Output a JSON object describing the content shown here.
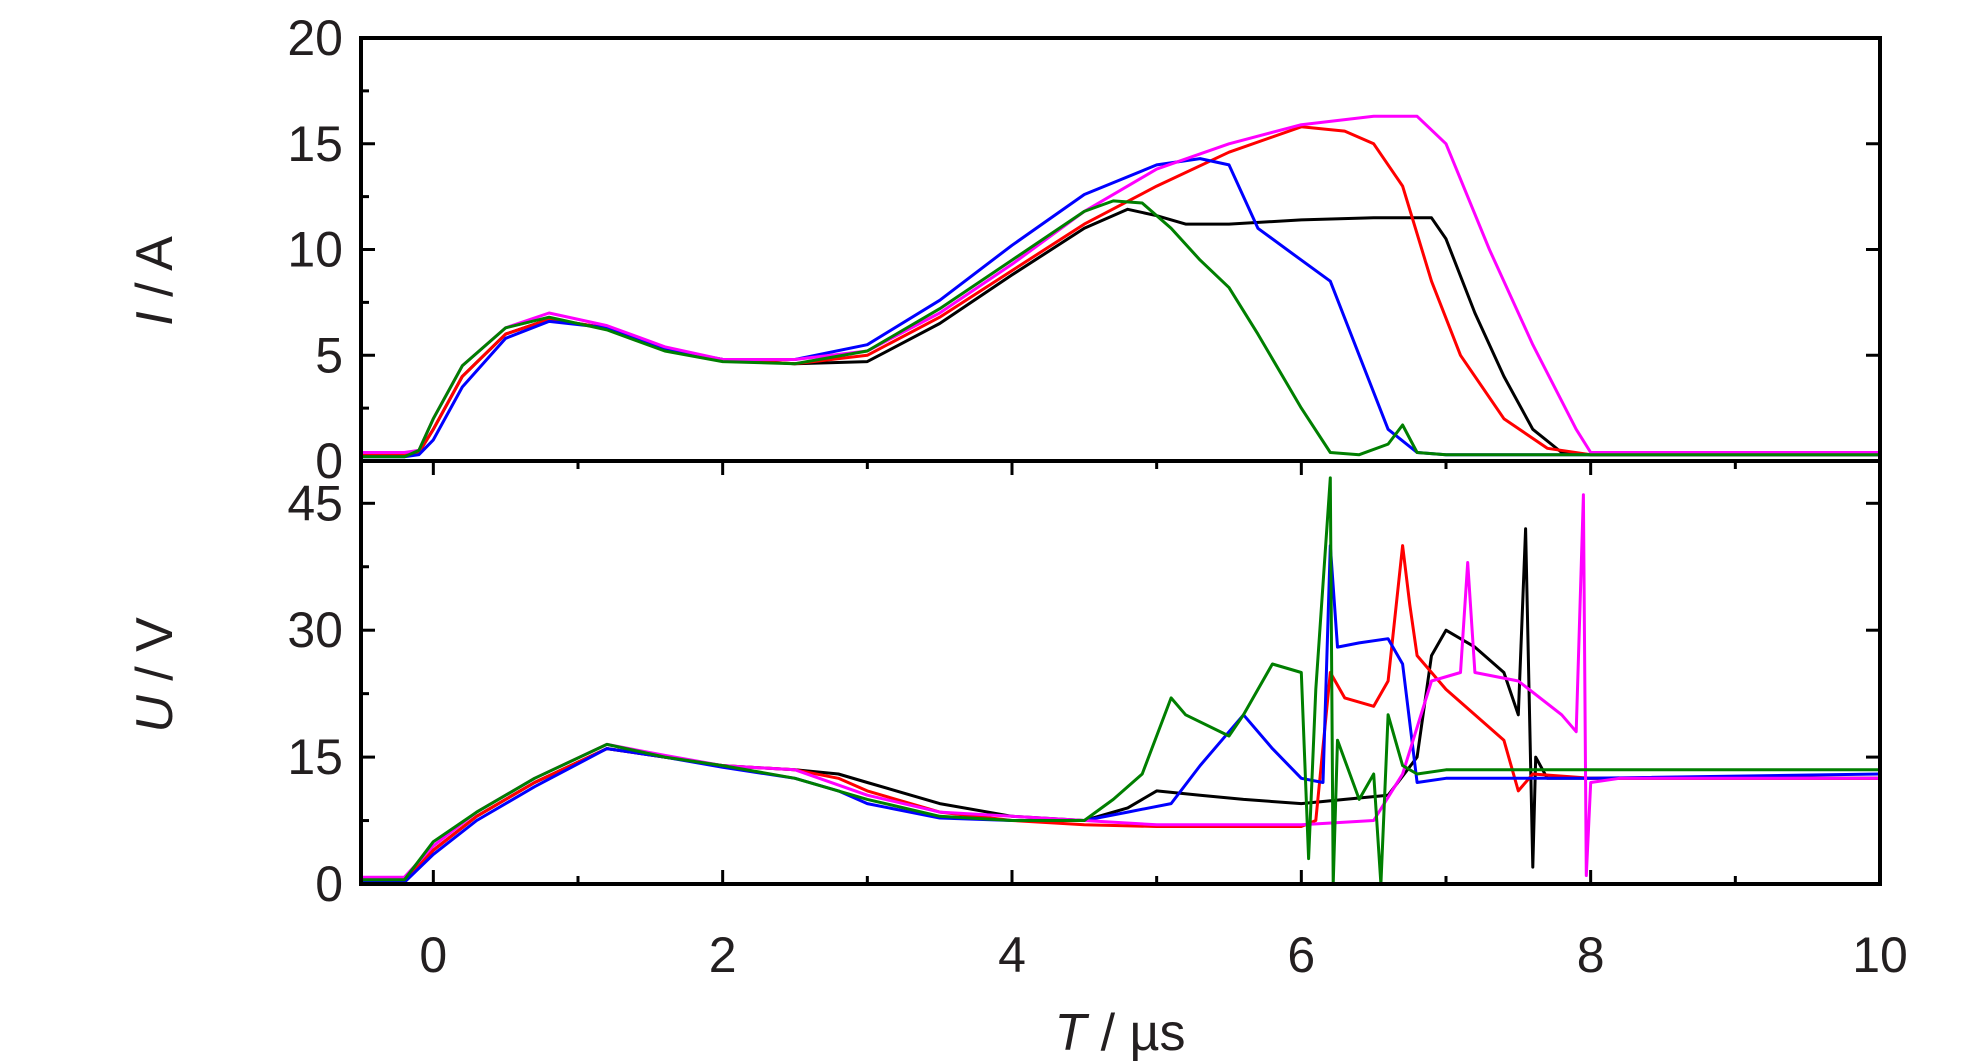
{
  "chart_data": [
    {
      "type": "line",
      "panel": "top",
      "ylabel_var": "I",
      "ylabel_unit": " / A",
      "ylim": [
        0,
        20
      ],
      "yticks": [
        "0",
        "5",
        "10",
        "15",
        "20"
      ],
      "xlim": [
        -0.5,
        10
      ],
      "grid": false,
      "series": [
        {
          "color": "#000000",
          "x": [
            -0.5,
            -0.2,
            -0.1,
            0,
            0.2,
            0.5,
            0.8,
            1.2,
            1.6,
            2.0,
            2.5,
            3.0,
            3.5,
            4.0,
            4.5,
            4.8,
            5.0,
            5.2,
            5.5,
            6.0,
            6.5,
            6.9,
            7.0,
            7.2,
            7.4,
            7.6,
            7.8,
            8.0,
            10.0
          ],
          "y": [
            0.3,
            0.3,
            0.4,
            1.5,
            4.0,
            6.0,
            6.7,
            6.3,
            5.3,
            4.8,
            4.6,
            4.7,
            6.5,
            8.8,
            11.0,
            11.9,
            11.6,
            11.2,
            11.2,
            11.4,
            11.5,
            11.5,
            10.5,
            7.0,
            4.0,
            1.5,
            0.4,
            0.3,
            0.3
          ]
        },
        {
          "color": "#ff0000",
          "x": [
            -0.5,
            -0.2,
            -0.1,
            0,
            0.2,
            0.5,
            0.8,
            1.2,
            1.6,
            2.0,
            2.5,
            3.0,
            3.5,
            4.0,
            4.5,
            5.0,
            5.5,
            6.0,
            6.3,
            6.5,
            6.7,
            6.9,
            7.1,
            7.4,
            7.7,
            8.0,
            10.0
          ],
          "y": [
            0.3,
            0.3,
            0.4,
            1.5,
            4.0,
            6.0,
            6.7,
            6.3,
            5.3,
            4.8,
            4.6,
            5.0,
            6.8,
            9.0,
            11.2,
            13.0,
            14.6,
            15.8,
            15.6,
            15.0,
            13.0,
            8.5,
            5.0,
            2.0,
            0.6,
            0.3,
            0.3
          ]
        },
        {
          "color": "#0000ff",
          "x": [
            -0.5,
            -0.2,
            -0.1,
            0,
            0.2,
            0.5,
            0.8,
            1.2,
            1.6,
            2.0,
            2.5,
            3.0,
            3.5,
            4.0,
            4.5,
            5.0,
            5.3,
            5.5,
            5.7,
            6.0,
            6.2,
            6.4,
            6.6,
            6.8,
            7.0,
            10.0
          ],
          "y": [
            0.2,
            0.2,
            0.3,
            1.0,
            3.5,
            5.8,
            6.6,
            6.3,
            5.3,
            4.8,
            4.8,
            5.5,
            7.6,
            10.2,
            12.6,
            14.0,
            14.3,
            14.0,
            11.0,
            9.5,
            8.5,
            5.0,
            1.5,
            0.4,
            0.3,
            0.3
          ]
        },
        {
          "color": "#ff00ff",
          "x": [
            -0.5,
            -0.2,
            -0.1,
            0,
            0.2,
            0.5,
            0.8,
            1.2,
            1.6,
            2.0,
            2.5,
            3.0,
            3.5,
            4.0,
            4.5,
            5.0,
            5.5,
            6.0,
            6.5,
            6.8,
            7.0,
            7.3,
            7.6,
            7.9,
            8.0,
            10.0
          ],
          "y": [
            0.4,
            0.4,
            0.5,
            2.0,
            4.5,
            6.3,
            7.0,
            6.4,
            5.4,
            4.8,
            4.8,
            5.2,
            7.0,
            9.3,
            11.8,
            13.8,
            15.0,
            15.9,
            16.3,
            16.3,
            15.0,
            10.0,
            5.5,
            1.5,
            0.4,
            0.4
          ]
        },
        {
          "color": "#007f00",
          "x": [
            -0.5,
            -0.2,
            -0.1,
            0,
            0.2,
            0.5,
            0.8,
            1.2,
            1.6,
            2.0,
            2.5,
            3.0,
            3.5,
            4.0,
            4.5,
            4.7,
            4.9,
            5.1,
            5.3,
            5.5,
            5.7,
            6.0,
            6.2,
            6.4,
            6.6,
            6.7,
            6.8,
            7.0,
            10.0
          ],
          "y": [
            0.2,
            0.2,
            0.5,
            2.0,
            4.5,
            6.3,
            6.8,
            6.2,
            5.2,
            4.7,
            4.6,
            5.2,
            7.2,
            9.5,
            11.8,
            12.3,
            12.2,
            11.0,
            9.5,
            8.2,
            6.0,
            2.5,
            0.4,
            0.3,
            0.8,
            1.7,
            0.4,
            0.3,
            0.3
          ]
        }
      ]
    },
    {
      "type": "line",
      "panel": "bottom",
      "ylabel_var": "U",
      "ylabel_unit": " / V",
      "ylim": [
        0,
        50
      ],
      "yticks": [
        "0",
        "15",
        "30",
        "45"
      ],
      "ytick_values": [
        0,
        15,
        30,
        45
      ],
      "xlim": [
        -0.5,
        10
      ],
      "xticks": [
        "0",
        "2",
        "4",
        "6",
        "8",
        "10"
      ],
      "xtick_values": [
        0,
        2,
        4,
        6,
        8,
        10
      ],
      "xlabel_var": "T",
      "xlabel_unit": " / µs",
      "grid": false,
      "series": [
        {
          "color": "#000000",
          "x": [
            -0.5,
            -0.2,
            0,
            0.3,
            0.7,
            1.2,
            1.6,
            2.0,
            2.5,
            2.8,
            3.0,
            3.5,
            4.0,
            4.5,
            4.8,
            5.0,
            5.3,
            5.6,
            6.0,
            6.3,
            6.6,
            6.8,
            6.9,
            7.0,
            7.2,
            7.4,
            7.5,
            7.55,
            7.6,
            7.62,
            7.7,
            8.0,
            10.0
          ],
          "y": [
            0.5,
            0.5,
            4.0,
            8.0,
            12.0,
            16.0,
            15.0,
            14.0,
            13.5,
            13.0,
            12.0,
            9.5,
            8.0,
            7.5,
            9.0,
            11.0,
            10.5,
            10.0,
            9.5,
            10.0,
            10.5,
            15.0,
            27.0,
            30.0,
            28.0,
            25.0,
            20.0,
            42.0,
            2.0,
            15.0,
            12.5,
            12.5,
            12.5
          ]
        },
        {
          "color": "#ff0000",
          "x": [
            -0.5,
            -0.2,
            0,
            0.3,
            0.7,
            1.2,
            1.6,
            2.0,
            2.5,
            2.8,
            3.0,
            3.5,
            4.0,
            4.5,
            5.0,
            5.5,
            6.0,
            6.1,
            6.2,
            6.3,
            6.5,
            6.6,
            6.7,
            6.75,
            6.8,
            7.0,
            7.2,
            7.4,
            7.5,
            7.6,
            8.0,
            10.0
          ],
          "y": [
            0.5,
            0.5,
            4.0,
            8.0,
            12.0,
            16.0,
            15.0,
            14.0,
            13.5,
            12.5,
            11.0,
            8.5,
            7.5,
            7.0,
            6.8,
            6.8,
            6.8,
            7.5,
            25.0,
            22.0,
            21.0,
            24.0,
            40.0,
            33.0,
            27.0,
            23.0,
            20.0,
            17.0,
            11.0,
            13.0,
            12.5,
            12.5
          ]
        },
        {
          "color": "#0000ff",
          "x": [
            -0.5,
            -0.2,
            0,
            0.3,
            0.7,
            1.2,
            1.6,
            2.0,
            2.5,
            2.8,
            3.0,
            3.5,
            4.0,
            4.5,
            4.8,
            5.1,
            5.3,
            5.6,
            5.8,
            6.0,
            6.15,
            6.2,
            6.25,
            6.4,
            6.6,
            6.7,
            6.8,
            7.0,
            7.5,
            8.0,
            10.0
          ],
          "y": [
            0.2,
            0.2,
            3.5,
            7.5,
            11.5,
            16.0,
            15.0,
            13.8,
            12.5,
            11.0,
            9.5,
            7.8,
            7.5,
            7.5,
            8.5,
            9.5,
            14.0,
            20.0,
            16.0,
            12.5,
            12.0,
            40.0,
            28.0,
            28.5,
            29.0,
            26.0,
            12.0,
            12.5,
            12.5,
            12.5,
            13.0
          ]
        },
        {
          "color": "#ff00ff",
          "x": [
            -0.5,
            -0.2,
            0,
            0.3,
            0.7,
            1.2,
            1.6,
            2.0,
            2.5,
            3.0,
            3.5,
            4.0,
            4.5,
            5.0,
            5.5,
            6.0,
            6.5,
            6.7,
            6.9,
            7.1,
            7.15,
            7.2,
            7.5,
            7.8,
            7.9,
            7.95,
            7.97,
            8.0,
            8.2,
            10.0
          ],
          "y": [
            0.8,
            0.8,
            4.5,
            8.5,
            12.5,
            16.5,
            15.2,
            14.0,
            13.5,
            10.5,
            8.5,
            8.0,
            7.5,
            7.0,
            7.0,
            7.0,
            7.5,
            13.0,
            24.0,
            25.0,
            38.0,
            25.0,
            24.0,
            20.0,
            18.0,
            46.0,
            1.0,
            12.0,
            12.5,
            12.5
          ]
        },
        {
          "color": "#007f00",
          "x": [
            -0.5,
            -0.2,
            0,
            0.3,
            0.7,
            1.2,
            1.6,
            2.0,
            2.5,
            3.0,
            3.5,
            4.0,
            4.5,
            4.7,
            4.9,
            5.1,
            5.2,
            5.5,
            5.6,
            5.8,
            6.0,
            6.05,
            6.1,
            6.2,
            6.22,
            6.25,
            6.4,
            6.5,
            6.55,
            6.6,
            6.7,
            6.8,
            7.0,
            7.5,
            8.0,
            10.0
          ],
          "y": [
            0.5,
            0.5,
            5.0,
            8.5,
            12.5,
            16.5,
            15.0,
            14.0,
            12.5,
            10.0,
            8.0,
            7.5,
            7.5,
            10.0,
            13.0,
            22.0,
            20.0,
            17.5,
            20.0,
            26.0,
            25.0,
            3.0,
            23.0,
            48.0,
            0.0,
            17.0,
            10.0,
            13.0,
            0.0,
            20.0,
            14.0,
            13.0,
            13.5,
            13.5,
            13.5,
            13.5
          ]
        }
      ]
    }
  ]
}
